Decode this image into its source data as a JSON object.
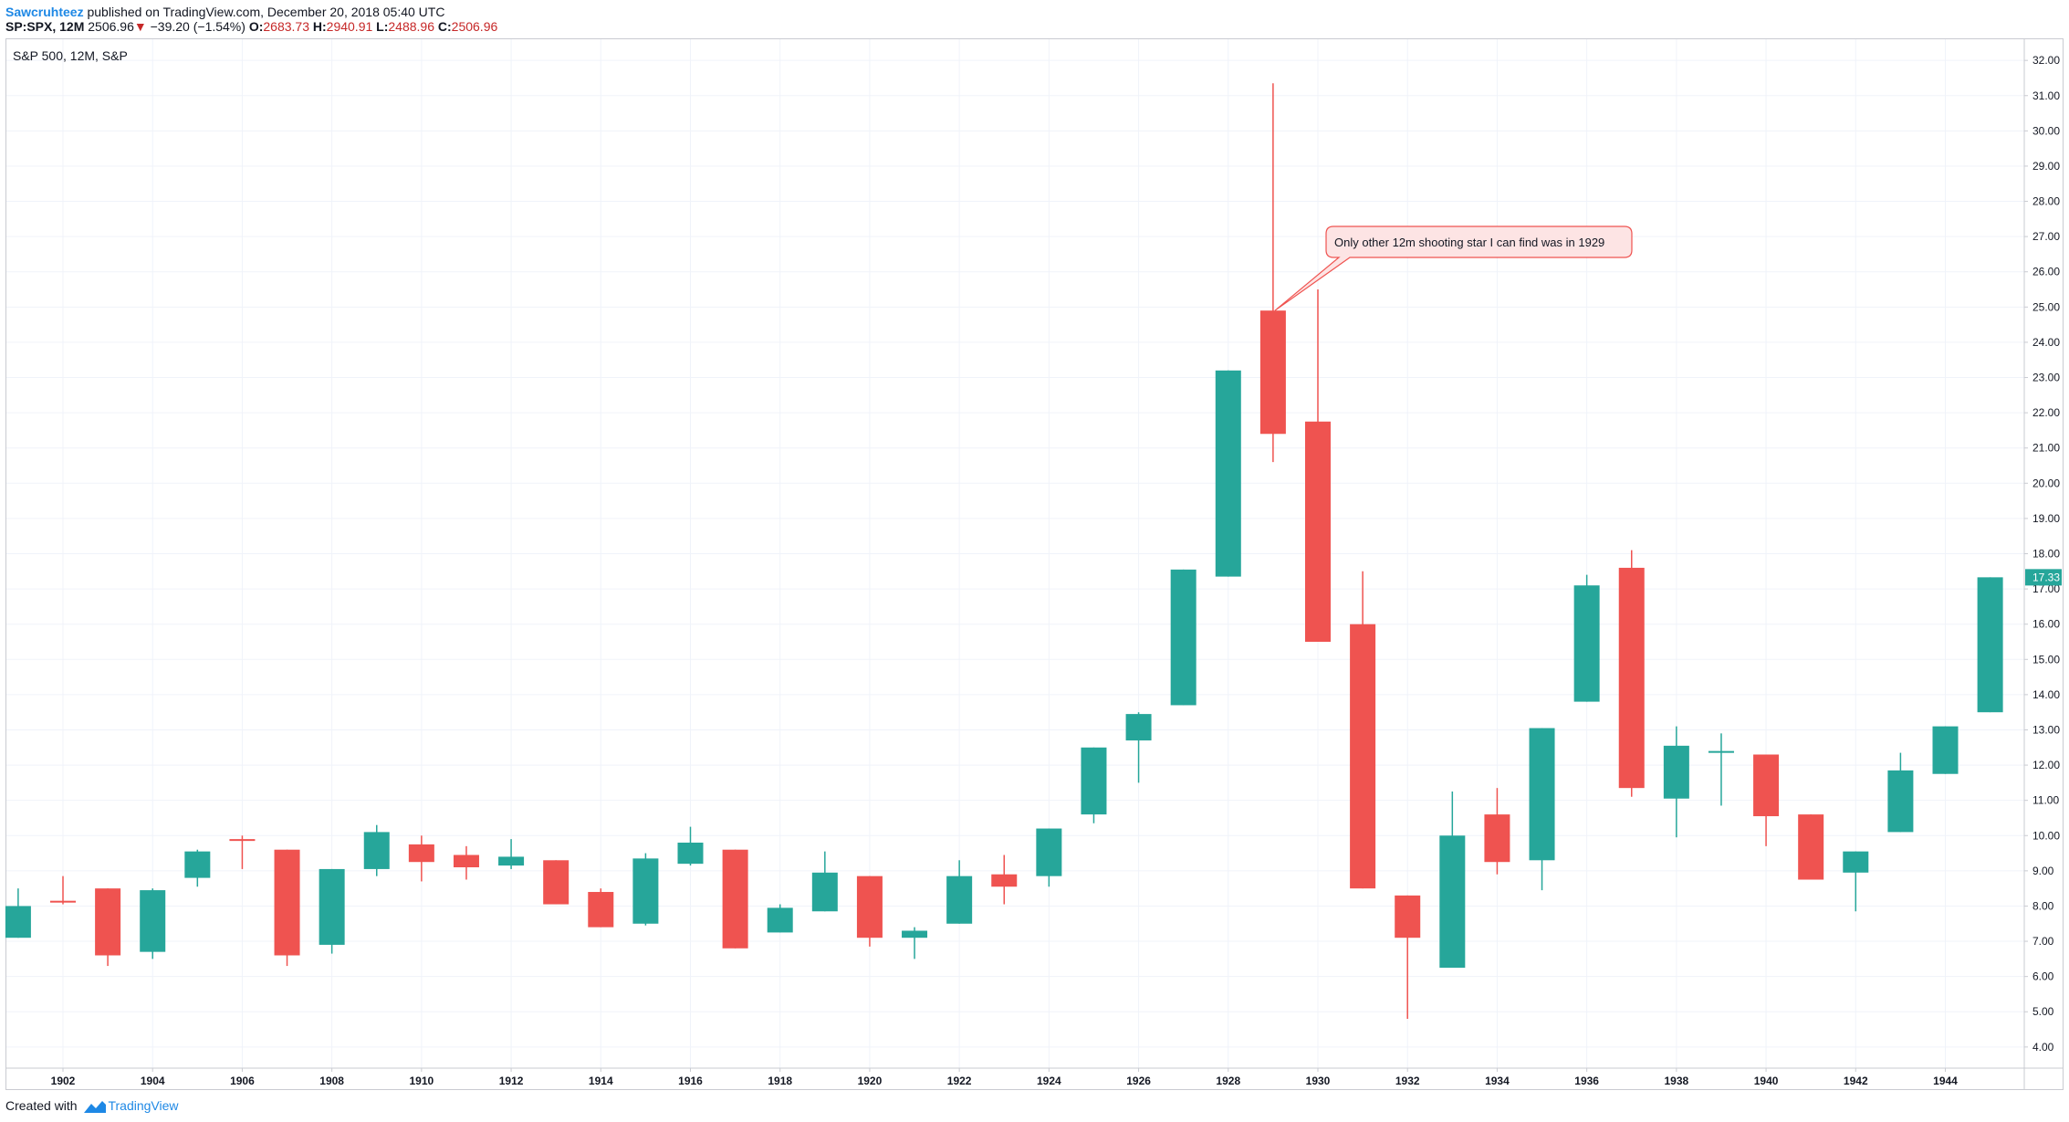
{
  "header": {
    "author": "Sawcruhteez",
    "published": "published on TradingView.com, December 20, 2018 05:40 UTC",
    "symbol": "SP:SPX, 12M",
    "price": "2506.96",
    "change": "−39.20 (−1.54%)",
    "o_label": "O:",
    "o_value": "2683.73",
    "h_label": "H:",
    "h_value": "2940.91",
    "l_label": "L:",
    "l_value": "2488.96",
    "c_label": "C:",
    "c_value": "2506.96",
    "down_arrow": "▼"
  },
  "chart_title": "S&P 500, 12M, S&P",
  "footer": {
    "created_with": "Created with",
    "brand": "TradingView",
    "logo_icon": "tradingview-logo-icon"
  },
  "colors": {
    "up": "#26a69a",
    "down": "#ef5350",
    "grid": "#f0f3fa",
    "axis": "#c9cbd1",
    "text": "#131722",
    "last_price_bg": "#26a69a"
  },
  "chart_data": {
    "type": "candlestick",
    "title": "S&P 500, 12M, S&P",
    "x_ticks": [
      "1902",
      "1904",
      "1906",
      "1908",
      "1910",
      "1912",
      "1914",
      "1916",
      "1918",
      "1920",
      "1922",
      "1924",
      "1926",
      "1928",
      "1930",
      "1932",
      "1934",
      "1936",
      "1938",
      "1940",
      "1942",
      "1944"
    ],
    "ylim": [
      3.4,
      32.6
    ],
    "y_ticks": [
      "4.00",
      "5.00",
      "6.00",
      "7.00",
      "8.00",
      "9.00",
      "10.00",
      "11.00",
      "12.00",
      "13.00",
      "14.00",
      "15.00",
      "16.00",
      "17.00",
      "18.00",
      "19.00",
      "20.00",
      "21.00",
      "22.00",
      "23.00",
      "24.00",
      "25.00",
      "26.00",
      "27.00",
      "28.00",
      "29.00",
      "30.00",
      "31.00",
      "32.00"
    ],
    "last_price": "17.33",
    "candles": [
      {
        "year": 1901,
        "o": 7.1,
        "h": 8.5,
        "l": 7.1,
        "c": 8.0
      },
      {
        "year": 1902,
        "o": 8.15,
        "h": 8.85,
        "l": 8.05,
        "c": 8.1
      },
      {
        "year": 1903,
        "o": 8.5,
        "h": 8.5,
        "l": 6.3,
        "c": 6.6
      },
      {
        "year": 1904,
        "o": 6.7,
        "h": 8.5,
        "l": 6.5,
        "c": 8.45
      },
      {
        "year": 1905,
        "o": 8.8,
        "h": 9.6,
        "l": 8.55,
        "c": 9.55
      },
      {
        "year": 1906,
        "o": 9.9,
        "h": 10.0,
        "l": 9.05,
        "c": 9.85
      },
      {
        "year": 1907,
        "o": 9.6,
        "h": 9.6,
        "l": 6.3,
        "c": 6.6
      },
      {
        "year": 1908,
        "o": 6.9,
        "h": 9.05,
        "l": 6.65,
        "c": 9.05
      },
      {
        "year": 1909,
        "o": 9.05,
        "h": 10.3,
        "l": 8.85,
        "c": 10.1
      },
      {
        "year": 1910,
        "o": 9.75,
        "h": 10.0,
        "l": 8.7,
        "c": 9.25
      },
      {
        "year": 1911,
        "o": 9.45,
        "h": 9.7,
        "l": 8.75,
        "c": 9.1
      },
      {
        "year": 1912,
        "o": 9.15,
        "h": 9.9,
        "l": 9.05,
        "c": 9.4
      },
      {
        "year": 1913,
        "o": 9.3,
        "h": 9.3,
        "l": 8.05,
        "c": 8.05
      },
      {
        "year": 1914,
        "o": 8.4,
        "h": 8.5,
        "l": 7.4,
        "c": 7.4
      },
      {
        "year": 1915,
        "o": 7.5,
        "h": 9.5,
        "l": 7.45,
        "c": 9.35
      },
      {
        "year": 1916,
        "o": 9.2,
        "h": 10.25,
        "l": 9.15,
        "c": 9.8
      },
      {
        "year": 1917,
        "o": 9.6,
        "h": 9.6,
        "l": 6.8,
        "c": 6.8
      },
      {
        "year": 1918,
        "o": 7.25,
        "h": 8.05,
        "l": 7.25,
        "c": 7.95
      },
      {
        "year": 1919,
        "o": 7.85,
        "h": 9.55,
        "l": 7.85,
        "c": 8.95
      },
      {
        "year": 1920,
        "o": 8.85,
        "h": 8.85,
        "l": 6.85,
        "c": 7.1
      },
      {
        "year": 1921,
        "o": 7.1,
        "h": 7.4,
        "l": 6.5,
        "c": 7.3
      },
      {
        "year": 1922,
        "o": 7.5,
        "h": 9.3,
        "l": 7.5,
        "c": 8.85
      },
      {
        "year": 1923,
        "o": 8.9,
        "h": 9.45,
        "l": 8.05,
        "c": 8.55
      },
      {
        "year": 1924,
        "o": 8.85,
        "h": 10.2,
        "l": 8.55,
        "c": 10.2
      },
      {
        "year": 1925,
        "o": 10.6,
        "h": 12.5,
        "l": 10.35,
        "c": 12.5
      },
      {
        "year": 1926,
        "o": 12.7,
        "h": 13.5,
        "l": 11.5,
        "c": 13.45
      },
      {
        "year": 1927,
        "o": 13.7,
        "h": 17.55,
        "l": 13.7,
        "c": 17.55
      },
      {
        "year": 1928,
        "o": 17.35,
        "h": 23.2,
        "l": 17.35,
        "c": 23.2
      },
      {
        "year": 1929,
        "o": 24.9,
        "h": 31.35,
        "l": 20.6,
        "c": 21.4
      },
      {
        "year": 1930,
        "o": 21.75,
        "h": 25.5,
        "l": 15.5,
        "c": 15.5
      },
      {
        "year": 1931,
        "o": 16.0,
        "h": 17.5,
        "l": 8.5,
        "c": 8.5
      },
      {
        "year": 1932,
        "o": 8.3,
        "h": 8.3,
        "l": 4.8,
        "c": 7.1
      },
      {
        "year": 1933,
        "o": 6.25,
        "h": 11.25,
        "l": 6.25,
        "c": 10.0
      },
      {
        "year": 1934,
        "o": 10.6,
        "h": 11.35,
        "l": 8.9,
        "c": 9.25
      },
      {
        "year": 1935,
        "o": 9.3,
        "h": 13.05,
        "l": 8.45,
        "c": 13.05
      },
      {
        "year": 1936,
        "o": 13.8,
        "h": 17.4,
        "l": 13.8,
        "c": 17.1
      },
      {
        "year": 1937,
        "o": 17.6,
        "h": 18.1,
        "l": 11.1,
        "c": 11.35
      },
      {
        "year": 1938,
        "o": 11.05,
        "h": 13.1,
        "l": 9.95,
        "c": 12.55
      },
      {
        "year": 1939,
        "o": 12.4,
        "h": 12.9,
        "l": 10.85,
        "c": 12.4
      },
      {
        "year": 1940,
        "o": 12.3,
        "h": 12.3,
        "l": 9.7,
        "c": 10.55
      },
      {
        "year": 1941,
        "o": 10.6,
        "h": 10.6,
        "l": 8.75,
        "c": 8.75
      },
      {
        "year": 1942,
        "o": 8.95,
        "h": 9.55,
        "l": 7.85,
        "c": 9.55
      },
      {
        "year": 1943,
        "o": 10.1,
        "h": 12.35,
        "l": 10.1,
        "c": 11.85
      },
      {
        "year": 1944,
        "o": 11.75,
        "h": 13.1,
        "l": 11.75,
        "c": 13.1
      },
      {
        "year": 1945,
        "o": 13.5,
        "h": 17.33,
        "l": 13.5,
        "c": 17.33
      }
    ],
    "annotation": {
      "text": "Only other 12m shooting star I can find was in 1929",
      "target_year": 1929,
      "target_value": 24.9
    }
  }
}
